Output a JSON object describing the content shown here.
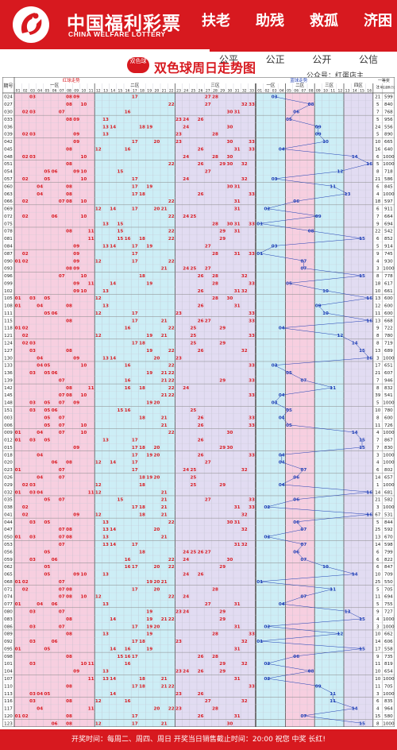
{
  "header": {
    "brand_cn": "中国福利彩票",
    "brand_en": "CHINA WELFARE LOTTERY",
    "slogans": [
      "扶老",
      "助残",
      "救孤",
      "济困"
    ],
    "mottos": [
      "公平",
      "公正",
      "公开",
      "公信"
    ],
    "badge": "双色球",
    "title": "双色球周日走势图",
    "account": "公众号：红蛋店主"
  },
  "table_header": {
    "issue_label": "期号",
    "red_label": "红球走势",
    "blue_label": "蓝球走势",
    "zone1": "一区",
    "zone2": "二区",
    "zone3": "三区",
    "zone4": "四区",
    "prize_label": "一等奖",
    "col_blue": "蓝",
    "col_note": "注",
    "col_amount": "单注金额(万元)"
  },
  "footer": {
    "text": "开奖时间：每周二、周四、周日  开奖当日销售截止时间：20:00  祝您 中奖 长红!"
  },
  "colors": {
    "accent_red": "#d7191f",
    "blue_ball": "#1f3fb5",
    "zone_pink": "#f7cfe0",
    "zone_cyan": "#cdeef6",
    "zone_lavender": "#e2dcf2"
  },
  "chart_data": {
    "type": "table",
    "title": "双色球周日走势图",
    "red_columns": [
      "01",
      "02",
      "03",
      "04",
      "05",
      "06",
      "07",
      "08",
      "09",
      "10",
      "11",
      "12",
      "13",
      "14",
      "15",
      "16",
      "17",
      "18",
      "19",
      "20",
      "21",
      "22",
      "23",
      "24",
      "25",
      "26",
      "27",
      "28",
      "29",
      "30",
      "31",
      "32",
      "33"
    ],
    "blue_columns": [
      "01",
      "02",
      "03",
      "04",
      "05",
      "06",
      "07",
      "08",
      "09",
      "10",
      "11",
      "12",
      "13",
      "14",
      "15",
      "16"
    ],
    "draws": [
      {
        "issue": "024",
        "red": [
          3,
          8,
          9,
          17,
          27,
          28
        ],
        "blue": 3,
        "winners": 21,
        "amount": 599
      },
      {
        "issue": "027",
        "red": [
          8,
          10,
          22,
          27,
          32,
          33
        ],
        "blue": 8,
        "winners": 5,
        "amount": 840
      },
      {
        "issue": "030",
        "red": [
          2,
          3,
          7,
          16,
          30,
          31
        ],
        "blue": 6,
        "winners": 7,
        "amount": 768
      },
      {
        "issue": "033",
        "red": [
          8,
          9,
          13,
          23,
          24,
          26
        ],
        "blue": 5,
        "winners": 5,
        "amount": 956
      },
      {
        "issue": "036",
        "red": [
          13,
          14,
          18,
          19,
          24,
          30
        ],
        "blue": 9,
        "winners": 24,
        "amount": 556
      },
      {
        "issue": "039",
        "red": [
          2,
          3,
          9,
          13,
          23,
          28
        ],
        "blue": 9,
        "winners": 5,
        "amount": 890
      },
      {
        "issue": "042",
        "red": [
          9,
          17,
          20,
          23,
          30,
          33
        ],
        "blue": 10,
        "winners": 10,
        "amount": 665
      },
      {
        "issue": "045",
        "red": [
          8,
          12,
          16,
          26,
          31,
          33
        ],
        "blue": 4,
        "winners": 16,
        "amount": 640
      },
      {
        "issue": "048",
        "red": [
          2,
          3,
          10,
          24,
          28,
          30
        ],
        "blue": 14,
        "winners": 6,
        "amount": 1000
      },
      {
        "issue": "051",
        "red": [
          8,
          22,
          26,
          29,
          30,
          32
        ],
        "blue": 16,
        "winners": 5,
        "amount": 1000
      },
      {
        "issue": "054",
        "red": [
          5,
          6,
          9,
          10,
          15,
          27
        ],
        "blue": 12,
        "winners": 8,
        "amount": 718
      },
      {
        "issue": "057",
        "red": [
          2,
          5,
          10,
          17,
          24,
          32
        ],
        "blue": 3,
        "winners": 21,
        "amount": 586
      },
      {
        "issue": "060",
        "red": [
          4,
          8,
          17,
          19,
          30,
          31
        ],
        "blue": 11,
        "winners": 6,
        "amount": 845
      },
      {
        "issue": "063",
        "red": [
          4,
          8,
          17,
          18,
          26,
          33
        ],
        "blue": 13,
        "winners": 4,
        "amount": 1000
      },
      {
        "issue": "066",
        "red": [
          2,
          7,
          8,
          10,
          22,
          31
        ],
        "blue": 6,
        "winners": 18,
        "amount": 597
      },
      {
        "issue": "069",
        "red": [
          12,
          14,
          17,
          20,
          21,
          31
        ],
        "blue": 2,
        "winners": 6,
        "amount": 911
      },
      {
        "issue": "072",
        "red": [
          2,
          6,
          10,
          22,
          24,
          25
        ],
        "blue": 9,
        "winners": 7,
        "amount": 664
      },
      {
        "issue": "075",
        "red": [
          13,
          15,
          28,
          30,
          31,
          33
        ],
        "blue": 1,
        "winners": 9,
        "amount": 694
      },
      {
        "issue": "078",
        "red": [
          8,
          11,
          15,
          22,
          29,
          31
        ],
        "blue": 8,
        "winners": 22,
        "amount": 542
      },
      {
        "issue": "081",
        "red": [
          11,
          15,
          16,
          18,
          22,
          29
        ],
        "blue": 15,
        "winners": 6,
        "amount": 852
      },
      {
        "issue": "084",
        "red": [
          9,
          13,
          14,
          17,
          19,
          27
        ],
        "blue": 3,
        "winners": 5,
        "amount": 914
      },
      {
        "issue": "087",
        "red": [
          2,
          9,
          17,
          28,
          31,
          33
        ],
        "blue": 1,
        "winners": 9,
        "amount": 745
      },
      {
        "issue": "090",
        "red": [
          1,
          2,
          9,
          12,
          17,
          22
        ],
        "blue": 7,
        "winners": 4,
        "amount": 930
      },
      {
        "issue": "093",
        "red": [
          8,
          9,
          21,
          24,
          25,
          27
        ],
        "blue": 7,
        "winners": 3,
        "amount": 1000
      },
      {
        "issue": "096",
        "red": [
          7,
          10,
          18,
          26,
          28,
          32
        ],
        "blue": 15,
        "winners": 8,
        "amount": 778
      },
      {
        "issue": "099",
        "red": [
          9,
          11,
          14,
          19,
          28,
          33
        ],
        "blue": 5,
        "winners": 18,
        "amount": 617
      },
      {
        "issue": "102",
        "red": [
          9,
          10,
          13,
          26,
          31,
          32
        ],
        "blue": 10,
        "winners": 10,
        "amount": 661
      },
      {
        "issue": "105",
        "red": [
          1,
          3,
          5,
          12,
          28,
          30
        ],
        "blue": 16,
        "winners": 13,
        "amount": 600
      },
      {
        "issue": "108",
        "red": [
          1,
          4,
          8,
          13,
          26,
          31
        ],
        "blue": 9,
        "winners": 12,
        "amount": 600
      },
      {
        "issue": "111",
        "red": [
          5,
          6,
          12,
          17,
          23,
          33
        ],
        "blue": 10,
        "winners": 11,
        "amount": 600
      },
      {
        "issue": "115",
        "red": [
          8,
          17,
          21,
          26,
          27,
          33
        ],
        "blue": 16,
        "winners": 13,
        "amount": 668
      },
      {
        "issue": "118",
        "red": [
          1,
          2,
          16,
          22,
          25,
          29
        ],
        "blue": 4,
        "winners": 9,
        "amount": 722
      },
      {
        "issue": "121",
        "red": [
          2,
          12,
          19,
          21,
          25,
          33
        ],
        "blue": 12,
        "winners": 8,
        "amount": 780
      },
      {
        "issue": "124",
        "red": [
          2,
          3,
          17,
          18,
          25,
          29
        ],
        "blue": 14,
        "winners": 8,
        "amount": 719
      },
      {
        "issue": "127",
        "red": [
          3,
          8,
          19,
          22,
          26,
          32
        ],
        "blue": 15,
        "winners": 13,
        "amount": 689
      },
      {
        "issue": "130",
        "red": [
          4,
          9,
          13,
          14,
          20,
          23
        ],
        "blue": 16,
        "winners": 3,
        "amount": 1000
      },
      {
        "issue": "133",
        "red": [
          4,
          5,
          10,
          16,
          22,
          33
        ],
        "blue": 3,
        "winners": 17,
        "amount": 651
      },
      {
        "issue": "136",
        "red": [
          3,
          5,
          6,
          19,
          21,
          22
        ],
        "blue": 5,
        "winners": 21,
        "amount": 607
      },
      {
        "issue": "139",
        "red": [
          7,
          16,
          21,
          22,
          29,
          33
        ],
        "blue": 7,
        "winners": 7,
        "amount": 946
      },
      {
        "issue": "142",
        "red": [
          8,
          11,
          16,
          18,
          22,
          24
        ],
        "blue": 11,
        "winners": 8,
        "amount": 832
      },
      {
        "issue": "145",
        "red": [
          7,
          8,
          10,
          21,
          22,
          33
        ],
        "blue": 4,
        "winners": 39,
        "amount": 541
      },
      {
        "issue": "148",
        "red": [
          3,
          5,
          7,
          9,
          19,
          20
        ],
        "blue": 3,
        "winners": 5,
        "amount": 1000
      },
      {
        "issue": "151",
        "red": [
          3,
          5,
          6,
          15,
          16,
          25
        ],
        "blue": 5,
        "winners": 10,
        "amount": 780
      },
      {
        "issue": "003",
        "red": [
          5,
          7,
          18,
          21,
          26,
          33
        ],
        "blue": 4,
        "winners": 8,
        "amount": 600
      },
      {
        "issue": "006",
        "red": [
          5,
          7,
          10,
          21,
          26,
          33
        ],
        "blue": 5,
        "winners": 11,
        "amount": 726
      },
      {
        "issue": "009",
        "red": [
          1,
          4,
          7,
          10,
          22,
          30
        ],
        "blue": 14,
        "winners": 4,
        "amount": 1000
      },
      {
        "issue": "012",
        "red": [
          1,
          3,
          5,
          13,
          17,
          26
        ],
        "blue": 15,
        "winners": 7,
        "amount": 867
      },
      {
        "issue": "015",
        "red": [
          9,
          17,
          18,
          20,
          29,
          30
        ],
        "blue": 15,
        "winners": 7,
        "amount": 830
      },
      {
        "issue": "018",
        "red": [
          4,
          17,
          19,
          20,
          26,
          33
        ],
        "blue": 4,
        "winners": 3,
        "amount": 1000
      },
      {
        "issue": "020",
        "red": [
          6,
          8,
          12,
          14,
          17,
          27
        ],
        "blue": 4,
        "winners": 4,
        "amount": 1000
      },
      {
        "issue": "023",
        "red": [
          1,
          7,
          17,
          24,
          25,
          32
        ],
        "blue": 7,
        "winners": 6,
        "amount": 802
      },
      {
        "issue": "026",
        "red": [
          4,
          7,
          18,
          19,
          20,
          25
        ],
        "blue": 6,
        "winners": 14,
        "amount": 657
      },
      {
        "issue": "029",
        "red": [
          2,
          3,
          12,
          18,
          25,
          29
        ],
        "blue": 4,
        "winners": 1,
        "amount": 1000
      },
      {
        "issue": "032",
        "red": [
          1,
          3,
          4,
          11,
          12,
          21
        ],
        "blue": 16,
        "winners": 14,
        "amount": 681
      },
      {
        "issue": "035",
        "red": [
          5,
          7,
          15,
          21,
          27,
          33
        ],
        "blue": 6,
        "winners": 21,
        "amount": 582
      },
      {
        "issue": "038",
        "red": [
          2,
          17,
          18,
          21,
          31,
          33
        ],
        "blue": 2,
        "winners": 3,
        "amount": 1000
      },
      {
        "issue": "041",
        "red": [
          2,
          9,
          12,
          18,
          21,
          32
        ],
        "blue": 16,
        "winners": 67,
        "amount": 531
      },
      {
        "issue": "044",
        "red": [
          3,
          5,
          13,
          22,
          30,
          31
        ],
        "blue": 6,
        "winners": 5,
        "amount": 844
      },
      {
        "issue": "047",
        "red": [
          7,
          8,
          13,
          14,
          20,
          32
        ],
        "blue": 7,
        "winners": 25,
        "amount": 592
      },
      {
        "issue": "050",
        "red": [
          1,
          3,
          7,
          8,
          13,
          21
        ],
        "blue": 2,
        "winners": 13,
        "amount": 670
      },
      {
        "issue": "053",
        "red": [
          7,
          13,
          14,
          17,
          31,
          32
        ],
        "blue": 7,
        "winners": 14,
        "amount": 598
      },
      {
        "issue": "056",
        "red": [
          5,
          18,
          24,
          25,
          26,
          27
        ],
        "blue": 6,
        "winners": 6,
        "amount": 799
      },
      {
        "issue": "059",
        "red": [
          3,
          6,
          16,
          22,
          24,
          30
        ],
        "blue": 7,
        "winners": 6,
        "amount": 822
      },
      {
        "issue": "062",
        "red": [
          5,
          16,
          17,
          20,
          22,
          29
        ],
        "blue": 10,
        "winners": 6,
        "amount": 847
      },
      {
        "issue": "065",
        "red": [
          5,
          9,
          10,
          13,
          24,
          26
        ],
        "blue": 14,
        "winners": 10,
        "amount": 709
      },
      {
        "issue": "068",
        "red": [
          1,
          2,
          7,
          19,
          20,
          21
        ],
        "blue": 1,
        "winners": 25,
        "amount": 550
      },
      {
        "issue": "071",
        "red": [
          2,
          7,
          8,
          17,
          20,
          28
        ],
        "blue": 11,
        "winners": 5,
        "amount": 705
      },
      {
        "issue": "074",
        "red": [
          7,
          8,
          10,
          12,
          22,
          24
        ],
        "blue": 7,
        "winners": 11,
        "amount": 694
      },
      {
        "issue": "077",
        "red": [
          1,
          4,
          6,
          13,
          27,
          31
        ],
        "blue": 4,
        "winners": 5,
        "amount": 755
      },
      {
        "issue": "080",
        "red": [
          3,
          7,
          19,
          23,
          24,
          29
        ],
        "blue": 13,
        "winners": 9,
        "amount": 727
      },
      {
        "issue": "083",
        "red": [
          8,
          14,
          19,
          21,
          22,
          29
        ],
        "blue": 15,
        "winners": 4,
        "amount": 1000
      },
      {
        "issue": "086",
        "red": [
          3,
          7,
          17,
          19,
          20,
          31
        ],
        "blue": 2,
        "winners": 3,
        "amount": 1000
      },
      {
        "issue": "089",
        "red": [
          8,
          13,
          19,
          28,
          33
        ],
        "blue": 12,
        "winners": 10,
        "amount": 662
      },
      {
        "issue": "092",
        "red": [
          3,
          6,
          17,
          18,
          23,
          32
        ],
        "blue": 1,
        "winners": 14,
        "amount": 606
      },
      {
        "issue": "095",
        "red": [
          1,
          5,
          14,
          16,
          19,
          31
        ],
        "blue": 15,
        "winners": 17,
        "amount": 558
      },
      {
        "issue": "098",
        "red": [
          8,
          15,
          16,
          17,
          26,
          28
        ],
        "blue": 6,
        "winners": 9,
        "amount": 735
      },
      {
        "issue": "101",
        "red": [
          3,
          10,
          11,
          16,
          29,
          32
        ],
        "blue": 2,
        "winners": 11,
        "amount": 819
      },
      {
        "issue": "104",
        "red": [
          9,
          13,
          23,
          24,
          26,
          29
        ],
        "blue": 8,
        "winners": 10,
        "amount": 654
      },
      {
        "issue": "107",
        "red": [
          11,
          13,
          14,
          18,
          21,
          31
        ],
        "blue": 2,
        "winners": 10,
        "amount": 1000
      },
      {
        "issue": "110",
        "red": [
          8,
          17,
          18,
          21,
          22,
          33
        ],
        "blue": 9,
        "winners": 11,
        "amount": 705
      },
      {
        "issue": "113",
        "red": [
          3,
          4,
          5,
          14,
          23,
          26
        ],
        "blue": 11,
        "winners": 3,
        "amount": 1000
      },
      {
        "issue": "116",
        "red": [
          3,
          8,
          12,
          16,
          27,
          32
        ],
        "blue": 11,
        "winners": 6,
        "amount": 835
      },
      {
        "issue": "117",
        "red": [
          4,
          11,
          20,
          22,
          23,
          28
        ],
        "blue": 14,
        "winners": 4,
        "amount": 964
      },
      {
        "issue": "120",
        "red": [
          1,
          2,
          8,
          17,
          26,
          31
        ],
        "blue": 7,
        "winners": 15,
        "amount": 580
      },
      {
        "issue": "123",
        "red": [
          6,
          8,
          12,
          17,
          21,
          30
        ],
        "blue": 15,
        "winners": 8,
        "amount": 1000
      }
    ]
  }
}
